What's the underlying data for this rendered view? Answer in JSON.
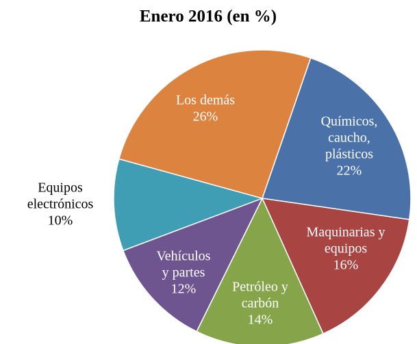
{
  "chart_data": {
    "type": "pie",
    "title": "Enero 2016 (en %)",
    "categories": [
      [
        "Químicos,",
        "caucho,",
        "plásticos"
      ],
      [
        "Maquinarias y",
        "equipos"
      ],
      [
        "Petróleo y",
        "carbón"
      ],
      [
        "Vehículos",
        "y partes"
      ],
      [
        "Equipos",
        "electrónicos"
      ],
      [
        "Los demás"
      ]
    ],
    "values": [
      22,
      16,
      14,
      12,
      10,
      26
    ],
    "value_labels": [
      "22%",
      "16%",
      "14%",
      "12%",
      "10%",
      "26%"
    ],
    "colors": [
      "#4a72a8",
      "#a84442",
      "#86a54a",
      "#6e558f",
      "#3f9db4",
      "#dd8340"
    ]
  }
}
